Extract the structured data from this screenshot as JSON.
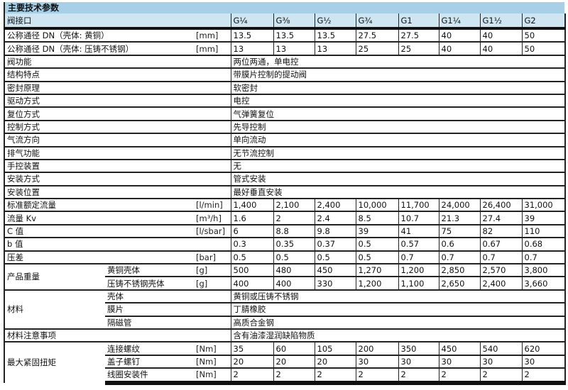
{
  "title": "主要技术参数",
  "header": {
    "label": "阀接口",
    "ports": [
      "G¼",
      "G⅜",
      "G½",
      "G¾",
      "G1",
      "G1¼",
      "G1½",
      "G2"
    ]
  },
  "rows": [
    {
      "label": "公称通径 DN（壳体: 黄铜）",
      "unit": "[mm]",
      "values": [
        "13.5",
        "13.5",
        "13.5",
        "27.5",
        "27.5",
        "40",
        "40",
        "50"
      ]
    },
    {
      "label": "公称通径 DN（壳体: 压铸不锈钢）",
      "unit": "[mm]",
      "values": [
        "13",
        "13",
        "13",
        "25",
        "25",
        "40",
        "40",
        "50"
      ]
    },
    {
      "label": "阀功能",
      "text": "两位两通，单电控"
    },
    {
      "label": "结构特点",
      "text": "带膜片控制的提动阀"
    },
    {
      "label": "密封原理",
      "text": "软密封"
    },
    {
      "label": "驱动方式",
      "text": "电控"
    },
    {
      "label": "复位方式",
      "text": "气弹簧复位"
    },
    {
      "label": "控制方式",
      "text": "先导控制"
    },
    {
      "label": "气流方向",
      "text": "单向流动"
    },
    {
      "label": "排气功能",
      "text": "无节流控制"
    },
    {
      "label": "手控装置",
      "text": "无"
    },
    {
      "label": "安装方式",
      "text": "管式安装"
    },
    {
      "label": "安装位置",
      "text": "最好垂直安装"
    },
    {
      "label": "标准额定流量",
      "unit": "[l/min]",
      "values": [
        "1,400",
        "2,100",
        "2,400",
        "10,000",
        "11,700",
        "24,000",
        "26,400",
        "31,000"
      ]
    },
    {
      "label": "流量 Kv",
      "unit": "[m³/h]",
      "values": [
        "1.6",
        "2",
        "2.4",
        "8.5",
        "10.7",
        "21.3",
        "27.4",
        "39"
      ]
    },
    {
      "label": "C 值",
      "unit": "[l/sbar]",
      "values": [
        "6",
        "8.8",
        "9.8",
        "39",
        "41",
        "75",
        "82",
        "110"
      ]
    },
    {
      "label": "b 值",
      "unit": "",
      "values": [
        "0.3",
        "0.35",
        "0.37",
        "0.5",
        "0.57",
        "0.6",
        "0.67",
        "0.68"
      ]
    },
    {
      "label": "压差",
      "unit": "[bar]",
      "values": [
        "0.5",
        "0.5",
        "0.5",
        "0.5",
        "0.7",
        "0.7",
        "0.7",
        "0.7"
      ]
    },
    {
      "label": "产品重量",
      "span": 2,
      "sub": "黄铜壳体",
      "unit": "[g]",
      "values": [
        "500",
        "480",
        "450",
        "1,270",
        "1,200",
        "2,850",
        "2,570",
        "3,800"
      ]
    },
    {
      "sub": "压铸不锈钢壳体",
      "unit": "[g]",
      "values": [
        "400",
        "400",
        "330",
        "1,200",
        "1,100",
        "2,650",
        "2,400",
        "3,660"
      ]
    },
    {
      "label": "材料",
      "span": 3,
      "sub": "壳体",
      "text": "黄铜或压铸不锈钢"
    },
    {
      "sub": "膜片",
      "text": "丁腈橡胶"
    },
    {
      "sub": "隔磁管",
      "text": "高质合金钢"
    },
    {
      "label": "材料注意事项",
      "text": "含有油漆湿润缺陷物质"
    },
    {
      "label": "最大紧固扭矩",
      "span": 3,
      "sub": "连接螺纹",
      "unit": "[Nm]",
      "values": [
        "35",
        "60",
        "105",
        "200",
        "350",
        "450",
        "540",
        "620"
      ]
    },
    {
      "sub": "盖子螺钉",
      "unit": "[Nm]",
      "values": [
        "20",
        "20",
        "20",
        "30",
        "30",
        "30",
        "30",
        "30"
      ]
    },
    {
      "sub": "线圈安装件",
      "unit": "[Nm]",
      "values": [
        "2",
        "2",
        "2",
        "2",
        "2",
        "2",
        "2",
        "2"
      ]
    }
  ]
}
